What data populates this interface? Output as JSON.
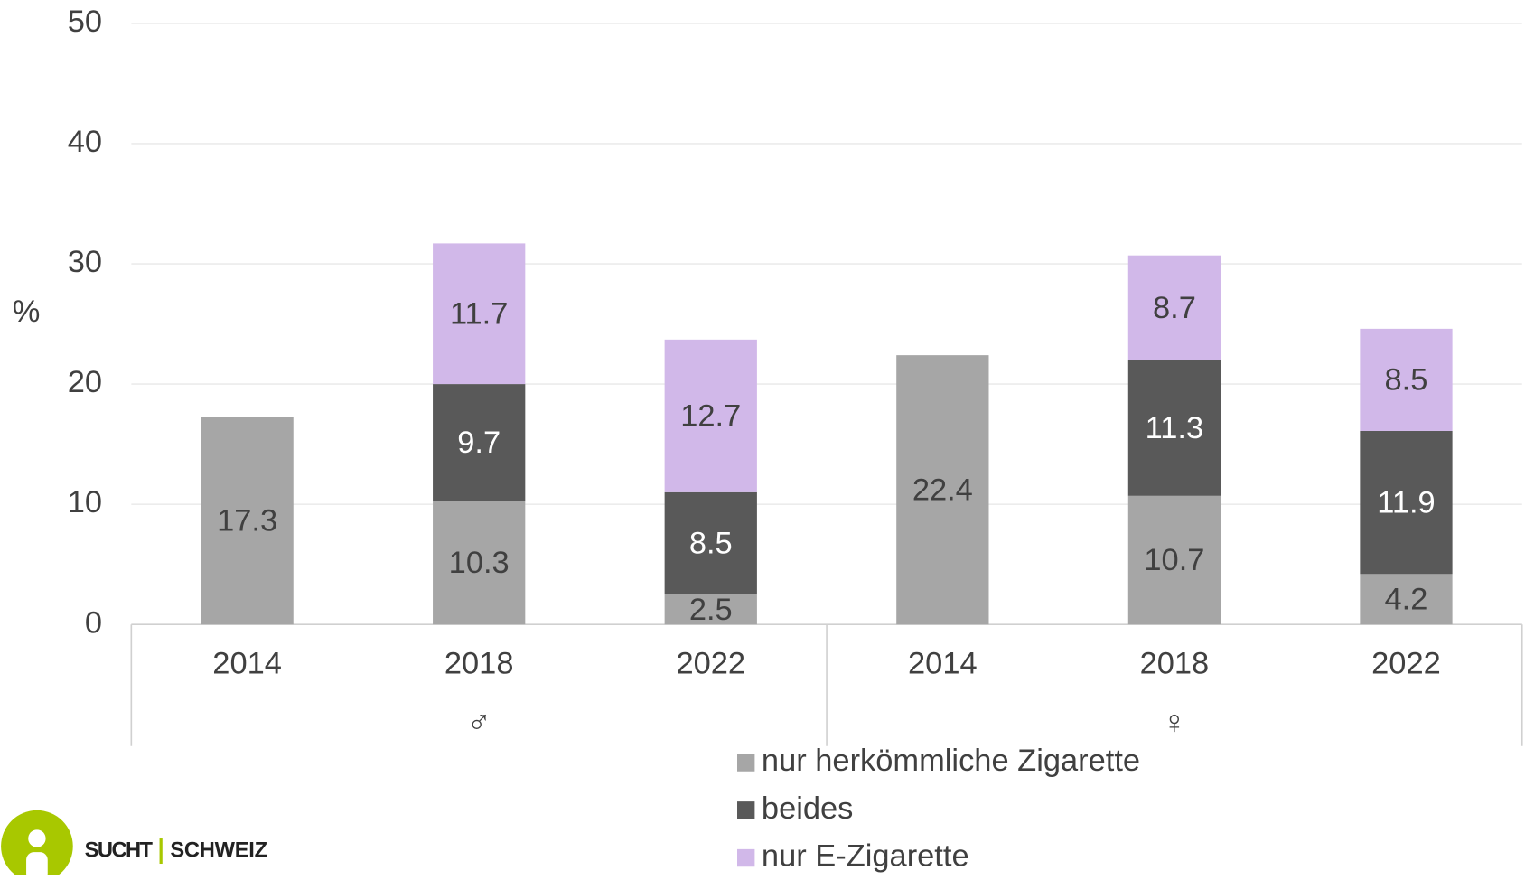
{
  "chart_data": {
    "type": "stacked_bar",
    "y_label": "%",
    "categories": [
      "2014",
      "2018",
      "2022",
      "2014",
      "2018",
      "2022"
    ],
    "groups": [
      "♂",
      "♀"
    ],
    "series": [
      {
        "name": "nur herkömmliche Zigarette",
        "color": "#a6a6a6",
        "label_color": "#404040",
        "values": [
          17.3,
          10.3,
          2.5,
          22.4,
          10.7,
          4.2
        ]
      },
      {
        "name": "beides",
        "color": "#595959",
        "label_color": "#ffffff",
        "values": [
          null,
          9.7,
          8.5,
          null,
          11.3,
          11.9
        ]
      },
      {
        "name": "nur E-Zigarette",
        "color": "#d1b8e9",
        "label_color": "#404040",
        "values": [
          null,
          11.7,
          12.7,
          null,
          8.7,
          8.5
        ]
      }
    ],
    "ylim": [
      0,
      50
    ],
    "yticks": [
      0,
      10,
      20,
      30,
      40,
      50
    ],
    "grid": true
  },
  "logo": {
    "left": "SUCHT",
    "right": "SCHWEIZ"
  }
}
